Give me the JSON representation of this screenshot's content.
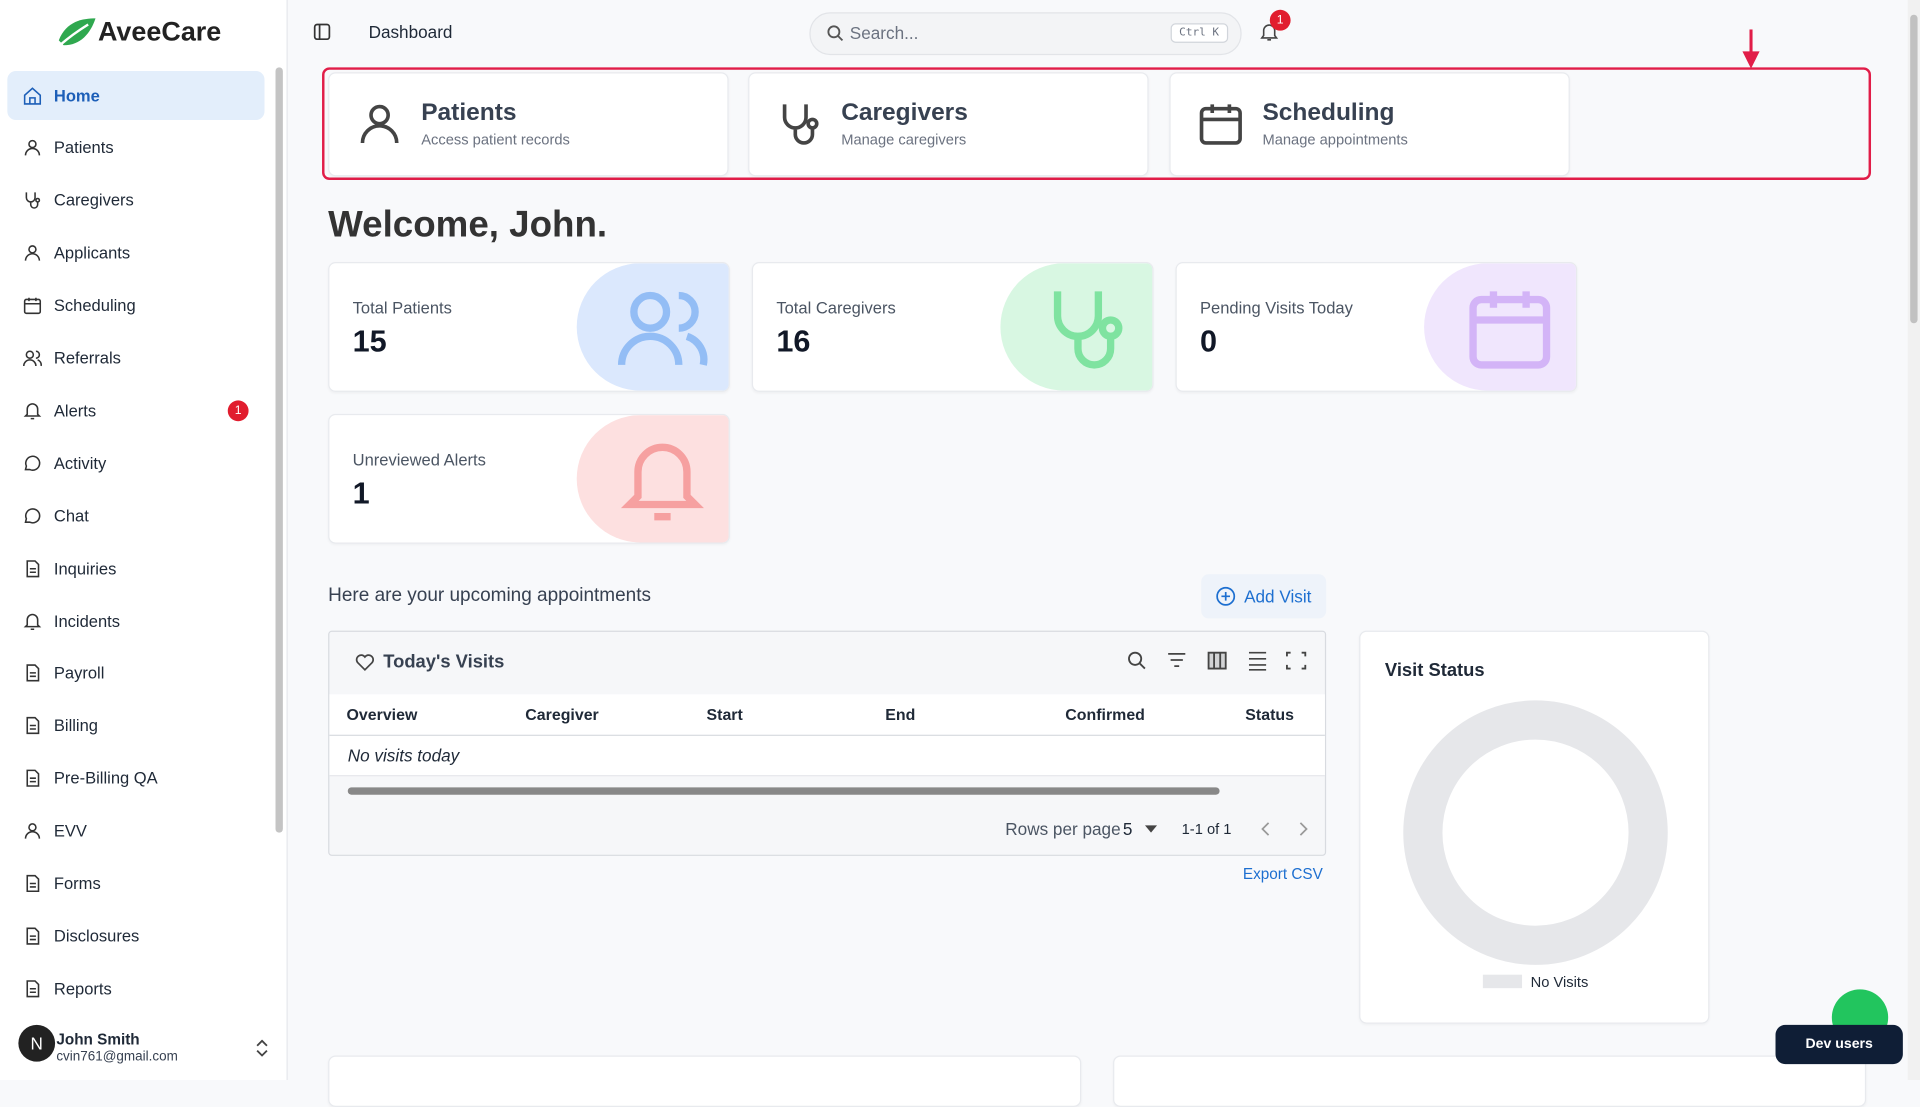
{
  "sidebar": {
    "logo": "AveeCare",
    "nav": [
      {
        "label": "Home"
      },
      {
        "label": "Patients"
      },
      {
        "label": "Caregivers"
      },
      {
        "label": "Applicants"
      },
      {
        "label": "Scheduling"
      },
      {
        "label": "Referrals"
      },
      {
        "label": "Alerts",
        "badge": "1"
      },
      {
        "label": "Activity"
      },
      {
        "label": "Chat"
      },
      {
        "label": "Inquiries"
      },
      {
        "label": "Incidents"
      },
      {
        "label": "Payroll"
      },
      {
        "label": "Billing"
      },
      {
        "label": "Pre-Billing QA"
      },
      {
        "label": "EVV"
      },
      {
        "label": "Forms"
      },
      {
        "label": "Disclosures"
      },
      {
        "label": "Reports"
      }
    ],
    "user": {
      "avatar": "N",
      "name": "John Smith",
      "email": "cvin761@gmail.com"
    }
  },
  "topbar": {
    "title": "Dashboard",
    "search_placeholder": "Search...",
    "shortcut": "Ctrl K",
    "notification_badge": "1"
  },
  "quick_links": [
    {
      "title": "Patients",
      "subtitle": "Access patient records"
    },
    {
      "title": "Caregivers",
      "subtitle": "Manage caregivers"
    },
    {
      "title": "Scheduling",
      "subtitle": "Manage appointments"
    }
  ],
  "welcome": "Welcome, John.",
  "stats": [
    {
      "label": "Total Patients",
      "value": "15"
    },
    {
      "label": "Total Caregivers",
      "value": "16"
    },
    {
      "label": "Pending Visits Today",
      "value": "0"
    },
    {
      "label": "Unreviewed Alerts",
      "value": "1"
    }
  ],
  "appointments": {
    "heading": "Here are your upcoming appointments",
    "add_button": "Add Visit",
    "table_title": "Today's Visits",
    "columns": [
      "Overview",
      "Caregiver",
      "Start",
      "End",
      "Confirmed",
      "Status"
    ],
    "empty": "No visits today",
    "rows_per_page_label": "Rows per page",
    "rows_per_page": "5",
    "pagination": "1-1 of 1",
    "export": "Export CSV"
  },
  "visit_status": {
    "title": "Visit Status",
    "legend": "No Visits"
  },
  "dev_users": "Dev users"
}
